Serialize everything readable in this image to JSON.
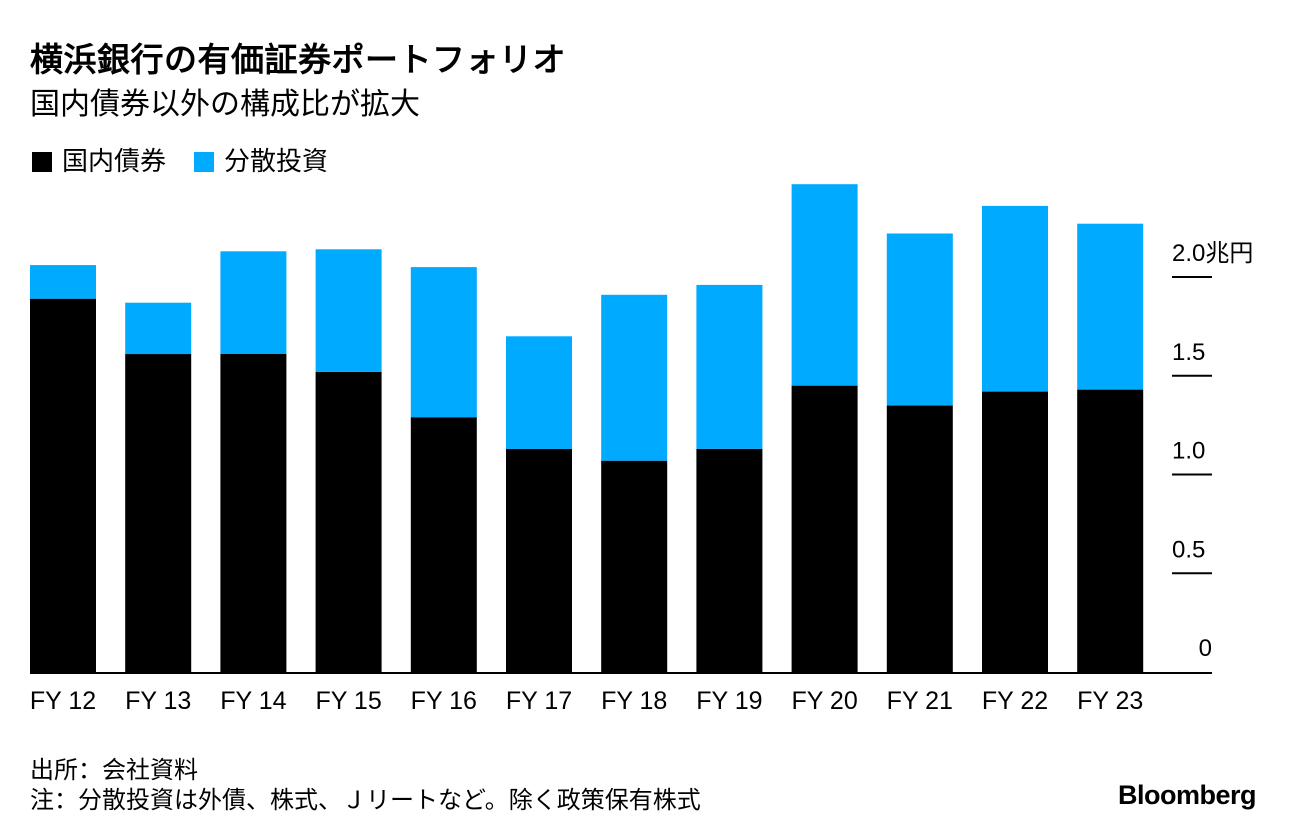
{
  "header": {
    "title": "横浜銀行の有価証券ポートフォリオ",
    "subtitle": "国内債券以外の構成比が拡大"
  },
  "colors": {
    "domestic_bonds": "#000000",
    "diversified": "#00aaff"
  },
  "chart_data": {
    "type": "bar",
    "stacked": true,
    "title": "横浜銀行の有価証券ポートフォリオ",
    "subtitle": "国内債券以外の構成比が拡大",
    "categories": [
      "FY 12",
      "FY 13",
      "FY 14",
      "FY 15",
      "FY 16",
      "FY 17",
      "FY 18",
      "FY 19",
      "FY 20",
      "FY 21",
      "FY 22",
      "FY 23"
    ],
    "series": [
      {
        "name": "国内債券",
        "color": "#000000",
        "values": [
          1.89,
          1.61,
          1.61,
          1.52,
          1.29,
          1.13,
          1.07,
          1.13,
          1.45,
          1.35,
          1.42,
          1.43
        ]
      },
      {
        "name": "分散投資",
        "color": "#00aaff",
        "values": [
          0.17,
          0.26,
          0.52,
          0.62,
          0.76,
          0.57,
          0.84,
          0.83,
          1.02,
          0.87,
          0.94,
          0.84
        ]
      }
    ],
    "yaxis": {
      "ticks": [
        0,
        0.5,
        1.0,
        1.5,
        2.0
      ],
      "tick_labels": [
        "0",
        "0.5",
        "1.0",
        "1.5",
        "2.0兆円"
      ],
      "range": [
        0,
        2.47
      ],
      "position": "right"
    },
    "xlabel": "",
    "ylabel": "",
    "legend": "top-left"
  },
  "footer": {
    "source": "出所：会社資料",
    "note": "注：分散投資は外債、株式、Ｊリートなど。除く政策保有株式",
    "brand": "Bloomberg"
  }
}
